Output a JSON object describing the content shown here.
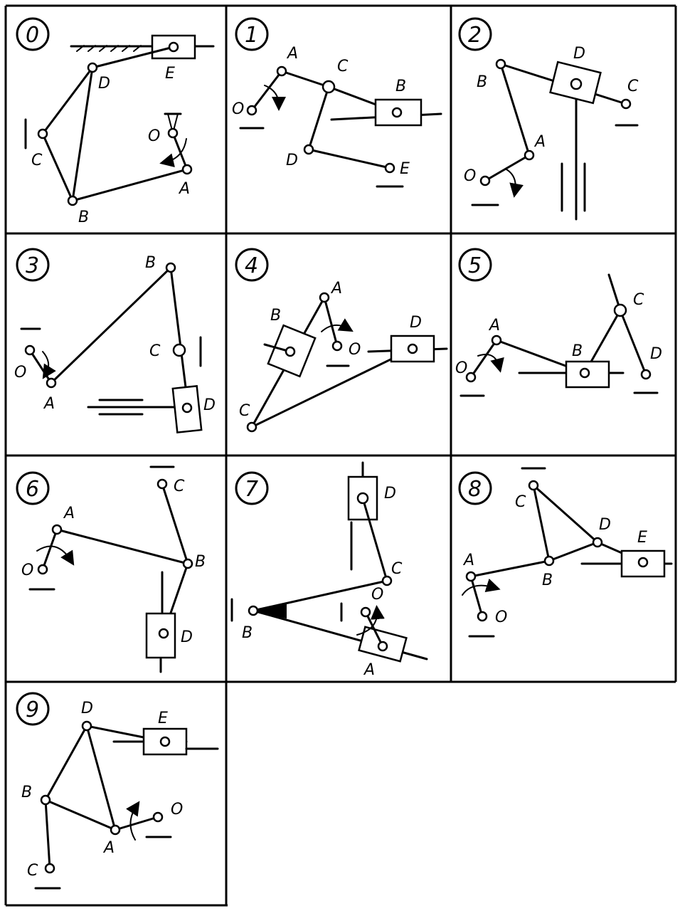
{
  "panels": [
    {
      "number": "0",
      "labels": {
        "D": "D",
        "E": "E",
        "C": "C",
        "O": "O",
        "B": "B",
        "A": "A"
      }
    },
    {
      "number": "1",
      "labels": {
        "A": "A",
        "C": "C",
        "B": "B",
        "O": "O",
        "D": "D",
        "E": "E"
      }
    },
    {
      "number": "2",
      "labels": {
        "D": "D",
        "B": "B",
        "C": "C",
        "A": "A",
        "O": "O"
      }
    },
    {
      "number": "3",
      "labels": {
        "B": "B",
        "C": "C",
        "O": "O",
        "A": "A",
        "D": "D"
      }
    },
    {
      "number": "4",
      "labels": {
        "A": "A",
        "B": "B",
        "D": "D",
        "O": "O",
        "C": "C"
      }
    },
    {
      "number": "5",
      "labels": {
        "A": "A",
        "C": "C",
        "B": "B",
        "O": "O",
        "D": "D"
      }
    },
    {
      "number": "6",
      "labels": {
        "C": "C",
        "A": "A",
        "B": "B",
        "O": "O",
        "D": "D"
      }
    },
    {
      "number": "7",
      "labels": {
        "D": "D",
        "C": "C",
        "O": "O",
        "B": "B",
        "A": "A"
      }
    },
    {
      "number": "8",
      "labels": {
        "C": "C",
        "D": "D",
        "E": "E",
        "A": "A",
        "B": "B",
        "O": "O"
      }
    },
    {
      "number": "9",
      "labels": {
        "D": "D",
        "E": "E",
        "B": "B",
        "O": "O",
        "A": "A",
        "C": "C"
      }
    }
  ]
}
